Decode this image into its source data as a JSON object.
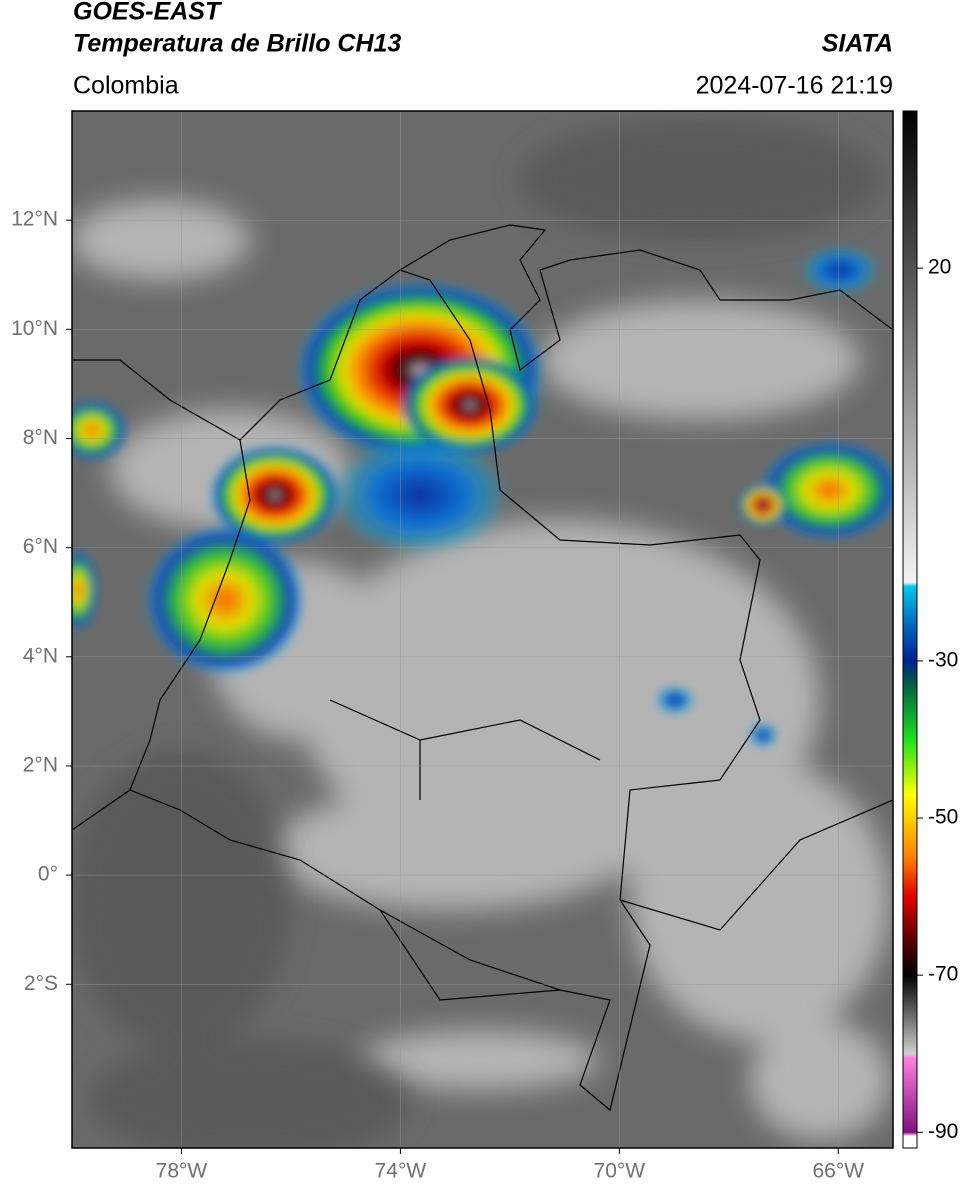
{
  "header": {
    "title": "GOES-EAST",
    "subtitle": "Temperatura de Brillo CH13",
    "source": "SIATA",
    "region": "Colombia",
    "timestamp": "2024-07-16 21:19"
  },
  "map": {
    "xlim": [
      -80,
      -65
    ],
    "ylim": [
      -5,
      14
    ],
    "grid": true,
    "xticks": [
      {
        "value": -78,
        "label": "78°W"
      },
      {
        "value": -74,
        "label": "74°W"
      },
      {
        "value": -70,
        "label": "70°W"
      },
      {
        "value": -66,
        "label": "66°W"
      }
    ],
    "yticks": [
      {
        "value": 12,
        "label": "12°N"
      },
      {
        "value": 10,
        "label": "10°N"
      },
      {
        "value": 8,
        "label": "8°N"
      },
      {
        "value": 6,
        "label": "6°N"
      },
      {
        "value": 4,
        "label": "4°N"
      },
      {
        "value": 2,
        "label": "2°N"
      },
      {
        "value": 0,
        "label": "0°"
      },
      {
        "value": -2,
        "label": "2°S"
      }
    ]
  },
  "colorbar": {
    "lim": [
      -92,
      40
    ],
    "ticks": [
      20,
      -30,
      -50,
      -70,
      -90
    ],
    "stops": [
      {
        "value": 40,
        "color": "#000000"
      },
      {
        "value": -20,
        "color": "#f4f4f4"
      },
      {
        "value": -20.5,
        "color": "#00c8f0"
      },
      {
        "value": -25,
        "color": "#0070c0"
      },
      {
        "value": -30,
        "color": "#002090"
      },
      {
        "value": -33,
        "color": "#006040"
      },
      {
        "value": -40,
        "color": "#20e020"
      },
      {
        "value": -47,
        "color": "#ffff00"
      },
      {
        "value": -55,
        "color": "#ff8000"
      },
      {
        "value": -60,
        "color": "#e00000"
      },
      {
        "value": -66,
        "color": "#500000"
      },
      {
        "value": -70,
        "color": "#000000"
      },
      {
        "value": -80,
        "color": "#d0d0d0"
      },
      {
        "value": -80.5,
        "color": "#ff80e0"
      },
      {
        "value": -90,
        "color": "#801080"
      },
      {
        "value": -90.5,
        "color": "#ffffff"
      },
      {
        "value": -92,
        "color": "#ffffff"
      }
    ]
  }
}
